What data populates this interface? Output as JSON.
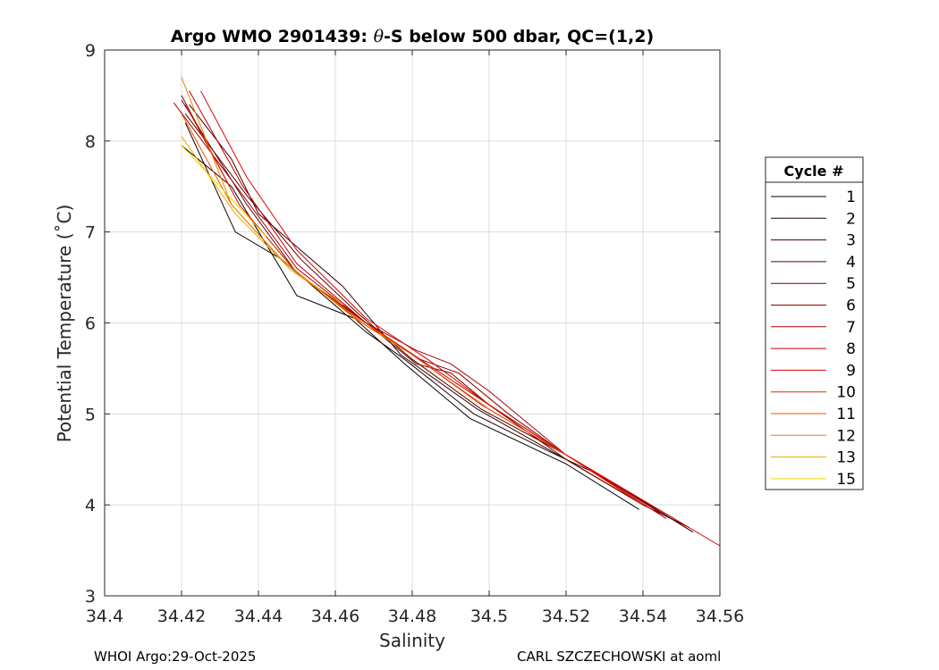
{
  "chart_data": {
    "type": "line",
    "title": {
      "prefix": "Argo WMO 2901439: ",
      "theta": "θ",
      "suffix": "-S below 500 dbar,  QC=(1,2)"
    },
    "xlabel": "Salinity",
    "ylabel": "Potential Temperature (˚C)",
    "xlim": [
      34.4,
      34.56
    ],
    "ylim": [
      3,
      9
    ],
    "x_ticks": [
      34.4,
      34.42,
      34.44,
      34.46,
      34.48,
      34.5,
      34.52,
      34.54,
      34.56
    ],
    "x_tick_labels": [
      "34.4",
      "34.42",
      "34.44",
      "34.46",
      "34.48",
      "34.5",
      "34.52",
      "34.54",
      "34.56"
    ],
    "y_ticks": [
      3,
      4,
      5,
      6,
      7,
      8,
      9
    ],
    "y_tick_labels": [
      "3",
      "4",
      "5",
      "6",
      "7",
      "8",
      "9"
    ],
    "grid": true,
    "legend": {
      "title": "Cycle #",
      "placement": "outside-right"
    },
    "series": [
      {
        "name": "1",
        "color": "#000000",
        "x": [
          34.42,
          34.433,
          34.45,
          34.465,
          34.478,
          34.495,
          34.52,
          34.539
        ],
        "y": [
          7.95,
          7.5,
          6.3,
          6.05,
          5.55,
          4.95,
          4.45,
          3.95
        ]
      },
      {
        "name": "2",
        "color": "#1f0000",
        "x": [
          34.421,
          34.434,
          34.446,
          34.468,
          34.478,
          34.496,
          34.515,
          34.53,
          34.553
        ],
        "y": [
          8.2,
          7.0,
          6.7,
          5.9,
          5.6,
          5.0,
          4.6,
          4.3,
          3.7
        ]
      },
      {
        "name": "3",
        "color": "#3a0000",
        "x": [
          34.422,
          34.433,
          34.44,
          34.462,
          34.477,
          34.497,
          34.52,
          34.54,
          34.552
        ],
        "y": [
          8.4,
          7.8,
          7.2,
          6.4,
          5.65,
          5.05,
          4.5,
          4.0,
          3.75
        ]
      },
      {
        "name": "4",
        "color": "#550000",
        "x": [
          34.421,
          34.437,
          34.451,
          34.466,
          34.48,
          34.498,
          34.52,
          34.54,
          34.552
        ],
        "y": [
          8.3,
          7.4,
          6.7,
          6.1,
          5.6,
          5.05,
          4.55,
          4.05,
          3.75
        ]
      },
      {
        "name": "5",
        "color": "#700000",
        "x": [
          34.42,
          34.437,
          34.45,
          34.468,
          34.481,
          34.49,
          34.5,
          34.52,
          34.54
        ],
        "y": [
          8.45,
          7.3,
          6.55,
          6.0,
          5.55,
          5.45,
          5.1,
          4.5,
          4.0
        ]
      },
      {
        "name": "6",
        "color": "#8b0000",
        "x": [
          34.42,
          34.435,
          34.45,
          34.468,
          34.482,
          34.492,
          34.505,
          34.52,
          34.542
        ],
        "y": [
          8.5,
          7.3,
          6.55,
          6.0,
          5.6,
          5.45,
          5.0,
          4.55,
          4.0
        ]
      },
      {
        "name": "7",
        "color": "#a60000",
        "x": [
          34.418,
          34.436,
          34.45,
          34.468,
          34.481,
          34.49,
          34.5,
          34.52,
          34.545
        ],
        "y": [
          8.42,
          7.4,
          6.6,
          6.0,
          5.7,
          5.55,
          5.25,
          4.55,
          3.9
        ]
      },
      {
        "name": "8",
        "color": "#c10000",
        "x": [
          34.422,
          34.436,
          34.45,
          34.468,
          34.482,
          34.5,
          34.52,
          34.546
        ],
        "y": [
          8.55,
          7.5,
          6.65,
          6.0,
          5.6,
          5.1,
          4.55,
          3.85
        ]
      },
      {
        "name": "9",
        "color": "#dc0000",
        "x": [
          34.425,
          34.437,
          34.45,
          34.468,
          34.484,
          34.5,
          34.52,
          34.56
        ],
        "y": [
          8.55,
          7.6,
          6.8,
          6.05,
          5.6,
          5.1,
          4.55,
          3.55
        ]
      },
      {
        "name": "10",
        "color": "#e62a00",
        "x": [
          34.421,
          34.435,
          34.45,
          34.467,
          34.48,
          34.498,
          34.52,
          34.54
        ],
        "y": [
          8.4,
          7.3,
          6.55,
          6.0,
          5.65,
          5.1,
          4.55,
          4.0
        ]
      },
      {
        "name": "11",
        "color": "#e85500",
        "x": [
          34.42,
          34.433,
          34.448,
          34.466,
          34.48,
          34.5,
          34.52
        ],
        "y": [
          8.3,
          7.3,
          6.6,
          6.05,
          5.65,
          5.05,
          4.55
        ]
      },
      {
        "name": "12",
        "color": "#eb8000",
        "x": [
          34.42,
          34.433,
          34.446,
          34.465,
          34.478
        ],
        "y": [
          8.7,
          7.3,
          6.7,
          6.05,
          5.7
        ]
      },
      {
        "name": "13",
        "color": "#eeaa00",
        "x": [
          34.42,
          34.434,
          34.448,
          34.462
        ],
        "y": [
          8.05,
          7.2,
          6.6,
          6.2
        ]
      },
      {
        "name": "15",
        "color": "#f2d500",
        "x": [
          34.42,
          34.43,
          34.442
        ],
        "y": [
          7.95,
          7.5,
          6.95
        ]
      }
    ]
  },
  "footer": {
    "left": "WHOI Argo:29-Oct-2025",
    "right": "CARL SZCZECHOWSKI at aoml"
  }
}
